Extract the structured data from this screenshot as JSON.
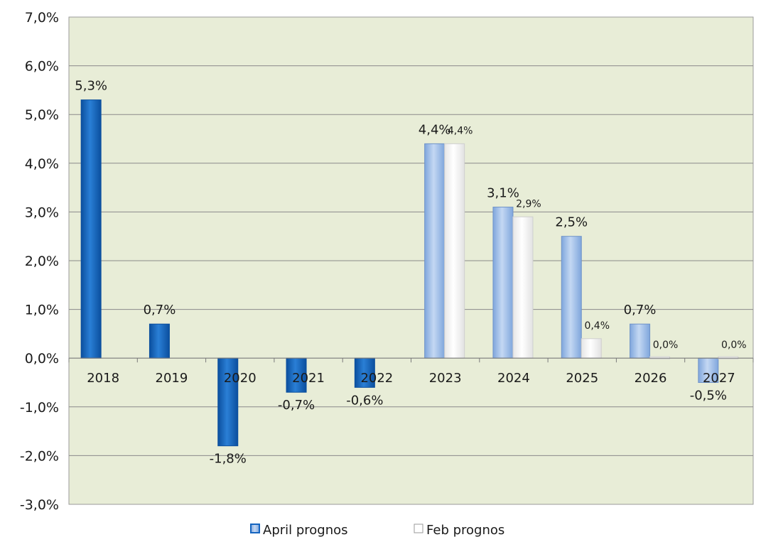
{
  "colors": {
    "plot_background": "#e8edd7",
    "gridline": "#8a8a8a",
    "dark_blue_bar": "#1565c0",
    "light_blue_bar": "#9dbdea",
    "white_bar": "#ffffff"
  },
  "chart_data": {
    "type": "bar",
    "categories": [
      "2018",
      "2019",
      "2020",
      "2021",
      "2022",
      "2023",
      "2024",
      "2025",
      "2026",
      "2027"
    ],
    "y_ticks": [
      "7,0%",
      "6,0%",
      "5,0%",
      "4,0%",
      "3,0%",
      "2,0%",
      "1,0%",
      "0,0%",
      "-1,0%",
      "-2,0%",
      "-3,0%"
    ],
    "ylim": [
      -3,
      7
    ],
    "grid": true,
    "legend_position": "bottom",
    "series": [
      {
        "name": "April prognos",
        "values": [
          5.3,
          0.7,
          -1.8,
          -0.7,
          -0.6,
          4.4,
          3.1,
          2.5,
          0.7,
          -0.5
        ],
        "labels": [
          "5,3%",
          "0,7%",
          "-1,8%",
          "-0,7%",
          "-0,6%",
          "4,4%",
          "3,1%",
          "2,5%",
          "0,7%",
          "-0,5%"
        ]
      },
      {
        "name": "Feb prognos",
        "values": [
          null,
          null,
          null,
          null,
          null,
          4.4,
          2.9,
          0.4,
          0.0,
          0.0
        ],
        "labels": [
          null,
          null,
          null,
          null,
          null,
          "4,4%",
          "2,9%",
          "0,4%",
          "0,0%",
          "0,0%"
        ]
      }
    ]
  }
}
